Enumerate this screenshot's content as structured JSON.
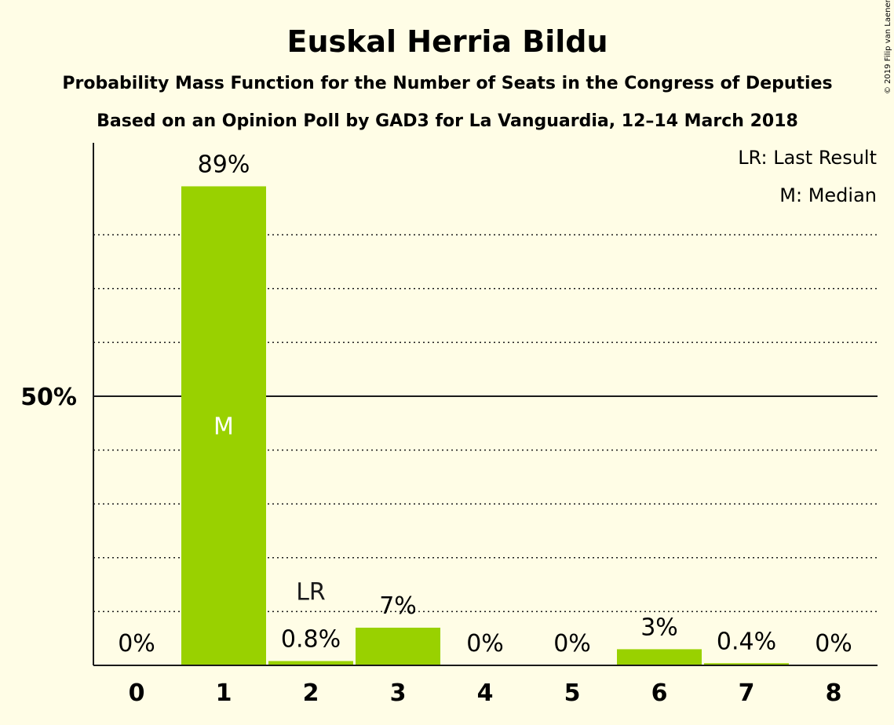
{
  "copyright": "© 2019 Filip van Laenen",
  "chart_data": {
    "type": "bar",
    "title": "Euskal Herria Bildu",
    "subtitle": "Probability Mass Function for the Number of Seats in the Congress of Deputies",
    "subtitle2": "Based on an Opinion Poll by GAD3 for La Vanguardia, 12–14 March 2018",
    "categories": [
      "0",
      "1",
      "2",
      "3",
      "4",
      "5",
      "6",
      "7",
      "8"
    ],
    "values": [
      0,
      89,
      0.8,
      7,
      0,
      0,
      3,
      0.4,
      0
    ],
    "value_labels": [
      "0%",
      "89%",
      "0.8%",
      "7%",
      "0%",
      "0%",
      "3%",
      "0.4%",
      "0%"
    ],
    "ylim": [
      0,
      97
    ],
    "y_ticks": [
      {
        "value": 50,
        "label": "50%"
      }
    ],
    "dotted_gridlines": [
      10,
      20,
      30,
      40,
      60,
      70,
      80
    ],
    "markers": [
      {
        "category": "1",
        "label": "M",
        "position": "inside"
      },
      {
        "category": "2",
        "label": "LR",
        "position": "above"
      }
    ],
    "legend": [
      "LR: Last Result",
      "M: Median"
    ],
    "legend_position": "top-right",
    "colors": {
      "bar": "#99D100",
      "background": "#FFFDE6",
      "text": "#1a1a1a"
    }
  }
}
